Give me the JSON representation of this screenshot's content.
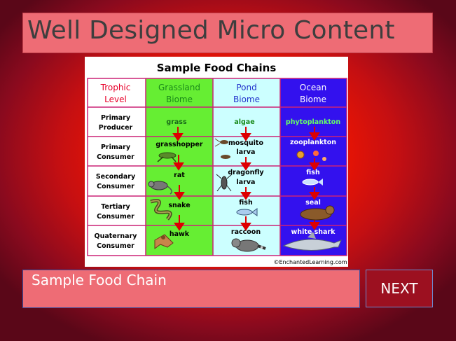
{
  "slide": {
    "title": "Well Designed Micro Content",
    "caption": "Sample Food Chain",
    "next_label": "NEXT"
  },
  "colors": {
    "title_bg": "#ee6c75",
    "next_bg": "#9c1020",
    "trophic_header": "#e8002a",
    "grassland": "#66ee33",
    "pond": "#ccffff",
    "ocean": "#3311ee",
    "arrow": "#dd0000"
  },
  "food_chart": {
    "title": "Sample Food Chains",
    "columns": [
      {
        "line1": "Trophic",
        "line2": "Level"
      },
      {
        "line1": "Grassland",
        "line2": "Biome"
      },
      {
        "line1": "Pond",
        "line2": "Biome"
      },
      {
        "line1": "Ocean",
        "line2": "Biome"
      }
    ],
    "rows": [
      {
        "level": [
          "Primary",
          "Producer"
        ],
        "grassland": "grass",
        "pond": [
          "algae"
        ],
        "ocean": "phytoplankton"
      },
      {
        "level": [
          "Primary",
          "Consumer"
        ],
        "grassland": "grasshopper",
        "pond": [
          "mosquito",
          "larva"
        ],
        "ocean": "zooplankton"
      },
      {
        "level": [
          "Secondary",
          "Consumer"
        ],
        "grassland": "rat",
        "pond": [
          "dragonfly",
          "larva"
        ],
        "ocean": "fish"
      },
      {
        "level": [
          "Tertiary",
          "Consumer"
        ],
        "grassland": "snake",
        "pond": [
          "fish"
        ],
        "ocean": "seal"
      },
      {
        "level": [
          "Quaternary",
          "Consumer"
        ],
        "grassland": "hawk",
        "pond": [
          "raccoon"
        ],
        "ocean": "white shark"
      }
    ],
    "credit": "©EnchantedLearning.com"
  }
}
